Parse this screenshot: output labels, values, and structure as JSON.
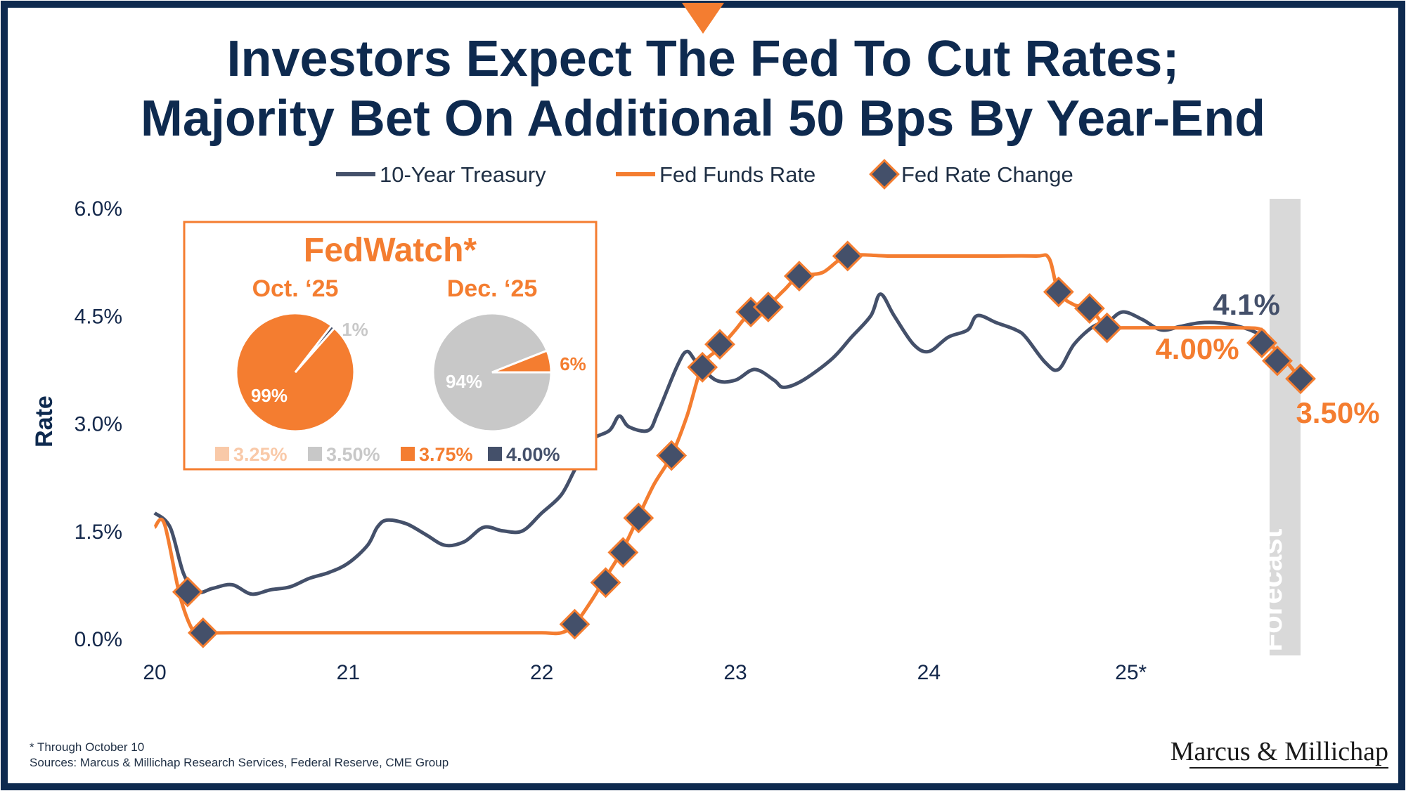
{
  "title_line1": "Investors Expect The Fed To Cut Rates;",
  "title_line2": "Majority Bet On Additional 50 Bps By Year-End",
  "colors": {
    "navy": "#0e2a4f",
    "treasury": "#44506a",
    "fed": "#f47d30",
    "marker": "#44506a",
    "forecast_band": "#d9d9d9",
    "pie_gray": "#c8c8c8",
    "pie_light": "#f9c9a8"
  },
  "legend": {
    "treasury": "10-Year Treasury",
    "fed_funds": "Fed Funds Rate",
    "fed_change": "Fed Rate Change"
  },
  "chart_data": {
    "type": "line",
    "ylabel": "Rate",
    "ylim": [
      0,
      6
    ],
    "yticks": [
      "6.0%",
      "4.5%",
      "3.0%",
      "1.5%",
      "0.0%"
    ],
    "ytick_values": [
      6.0,
      4.5,
      3.0,
      1.5,
      0.0
    ],
    "xlim": [
      2020.0,
      2025.92
    ],
    "xticks": [
      "20",
      "21",
      "22",
      "23",
      "24",
      "25*"
    ],
    "xtick_values": [
      2020,
      2021,
      2022,
      2023,
      2024,
      2025
    ],
    "grid": false,
    "legend_position": "top",
    "forecast_label": "Forecast",
    "forecast_range": [
      2025.76,
      2025.92
    ],
    "series": [
      {
        "name": "10-Year Treasury",
        "x": [
          2020.0,
          2020.08,
          2020.15,
          2020.22,
          2020.3,
          2020.4,
          2020.5,
          2020.6,
          2020.7,
          2020.8,
          2020.9,
          2021.0,
          2021.1,
          2021.15,
          2021.2,
          2021.3,
          2021.4,
          2021.5,
          2021.6,
          2021.7,
          2021.8,
          2021.9,
          2022.0,
          2022.1,
          2022.17,
          2022.25,
          2022.35,
          2022.4,
          2022.45,
          2022.55,
          2022.6,
          2022.7,
          2022.75,
          2022.8,
          2022.9,
          2023.0,
          2023.1,
          2023.2,
          2023.25,
          2023.35,
          2023.5,
          2023.6,
          2023.7,
          2023.75,
          2023.82,
          2023.92,
          2024.0,
          2024.1,
          2024.2,
          2024.25,
          2024.35,
          2024.45,
          2024.5,
          2024.6,
          2024.67,
          2024.75,
          2024.85,
          2024.92,
          2025.0,
          2025.1,
          2025.2,
          2025.3,
          2025.4,
          2025.5,
          2025.6,
          2025.7,
          2025.77
        ],
        "y": [
          1.75,
          1.55,
          0.9,
          0.65,
          0.7,
          0.75,
          0.62,
          0.68,
          0.72,
          0.84,
          0.92,
          1.05,
          1.3,
          1.55,
          1.65,
          1.6,
          1.45,
          1.3,
          1.35,
          1.55,
          1.5,
          1.5,
          1.75,
          2.0,
          2.35,
          2.75,
          2.9,
          3.1,
          2.95,
          2.9,
          3.15,
          3.8,
          4.0,
          3.85,
          3.6,
          3.6,
          3.75,
          3.6,
          3.5,
          3.6,
          3.9,
          4.2,
          4.5,
          4.8,
          4.5,
          4.1,
          4.0,
          4.2,
          4.3,
          4.5,
          4.4,
          4.3,
          4.2,
          3.85,
          3.75,
          4.1,
          4.35,
          4.4,
          4.55,
          4.45,
          4.3,
          4.35,
          4.4,
          4.4,
          4.35,
          4.25,
          4.1
        ]
      },
      {
        "name": "Fed Funds Rate",
        "x": [
          2020.0,
          2020.05,
          2020.13,
          2020.2,
          2020.25,
          2020.4,
          2020.6,
          2020.8,
          2021.0,
          2021.2,
          2021.4,
          2021.6,
          2021.8,
          2022.0,
          2022.1,
          2022.17,
          2022.25,
          2022.33,
          2022.42,
          2022.5,
          2022.58,
          2022.67,
          2022.75,
          2022.83,
          2022.92,
          2023.0,
          2023.08,
          2023.17,
          2023.25,
          2023.33,
          2023.45,
          2023.58,
          2023.8,
          2024.0,
          2024.3,
          2024.55,
          2024.62,
          2024.67,
          2024.75,
          2024.83,
          2024.92,
          2025.0,
          2025.3,
          2025.6,
          2025.72,
          2025.76,
          2025.84,
          2025.92
        ],
        "y": [
          1.55,
          1.6,
          0.6,
          0.1,
          0.08,
          0.08,
          0.08,
          0.08,
          0.08,
          0.08,
          0.08,
          0.08,
          0.08,
          0.08,
          0.08,
          0.2,
          0.5,
          0.85,
          1.25,
          1.7,
          2.15,
          2.55,
          3.1,
          3.8,
          4.05,
          4.3,
          4.55,
          4.65,
          4.85,
          5.05,
          5.1,
          5.33,
          5.33,
          5.33,
          5.33,
          5.33,
          5.3,
          4.83,
          4.65,
          4.6,
          4.33,
          4.33,
          4.33,
          4.33,
          4.3,
          4.12,
          3.88,
          3.62
        ]
      },
      {
        "name": "Fed Rate Change",
        "x": [
          2020.17,
          2020.25,
          2022.17,
          2022.33,
          2022.42,
          2022.5,
          2022.67,
          2022.83,
          2022.92,
          2023.08,
          2023.17,
          2023.33,
          2023.58,
          2024.67,
          2024.83,
          2024.92,
          2025.72,
          2025.8,
          2025.92
        ],
        "y": [
          0.65,
          0.08,
          0.2,
          0.78,
          1.2,
          1.68,
          2.55,
          3.78,
          4.1,
          4.55,
          4.62,
          5.05,
          5.33,
          4.83,
          4.6,
          4.33,
          4.12,
          3.87,
          3.62
        ]
      }
    ],
    "annotations": [
      "4.1%",
      "4.00%",
      "3.50%"
    ],
    "inset": {
      "title": "FedWatch*",
      "pies": [
        {
          "label": "Oct. ‘25",
          "slices": [
            {
              "name": "3.75%",
              "value": 99,
              "label": "99%"
            },
            {
              "name": "4.00%",
              "value": 1,
              "label": "1%"
            }
          ]
        },
        {
          "label": "Dec. ‘25",
          "slices": [
            {
              "name": "3.50%",
              "value": 94,
              "label": "94%"
            },
            {
              "name": "3.75%",
              "value": 6,
              "label": "6%"
            }
          ]
        }
      ],
      "legend": [
        "3.25%",
        "3.50%",
        "3.75%",
        "4.00%"
      ]
    }
  },
  "footnote": "* Through October 10",
  "sources": "Sources: Marcus & Millichap Research Services, Federal Reserve, CME Group",
  "logo": "Marcus & Millichap"
}
